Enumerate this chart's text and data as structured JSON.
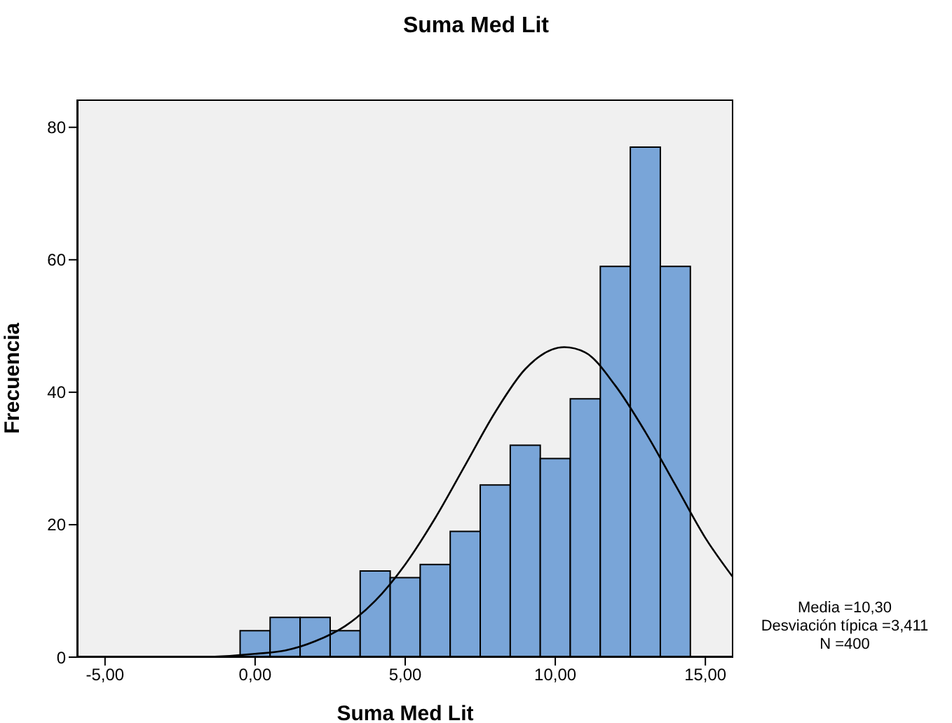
{
  "chart_data": {
    "type": "histogram",
    "title": "Suma Med Lit",
    "xlabel": "Suma Med Lit",
    "ylabel": "Frecuencia",
    "bins": [
      -0.5,
      0.5,
      1.5,
      2.5,
      3.5,
      4.5,
      5.5,
      6.5,
      7.5,
      8.5,
      9.5,
      10.5,
      11.5,
      12.5,
      13.5,
      14.5
    ],
    "values": [
      4,
      6,
      6,
      4,
      13,
      12,
      14,
      19,
      26,
      32,
      30,
      39,
      59,
      77,
      59
    ],
    "color": "#79a5d8",
    "series": [
      {
        "type": "line",
        "color": "#000000",
        "x": [
          -5.93,
          -4,
          -2,
          0,
          1,
          2,
          3,
          4,
          5,
          6,
          7,
          8,
          9,
          10.3,
          11,
          12,
          13,
          14,
          15,
          15.93
        ],
        "values": [
          0,
          0,
          0,
          0.5,
          1,
          2.4,
          4.7,
          8.5,
          14,
          21,
          29,
          37,
          43.5,
          46.8,
          46,
          41,
          34,
          26,
          18,
          12
        ]
      }
    ],
    "xlim": [
      -5.93,
      15.93
    ],
    "ylim": [
      0,
      84.2
    ],
    "xticks": [
      {
        "value": -5,
        "label": "-5,00"
      },
      {
        "value": 0,
        "label": "0,00"
      },
      {
        "value": 5,
        "label": "5,00"
      },
      {
        "value": 10,
        "label": "10,00"
      },
      {
        "value": 15,
        "label": "15,00"
      }
    ],
    "yticks": [
      0,
      20,
      40,
      60,
      80
    ],
    "grid": false,
    "marker": "none",
    "annotations": [
      "Media =10,30",
      "Desviación típica =3,411",
      "N =400"
    ]
  }
}
